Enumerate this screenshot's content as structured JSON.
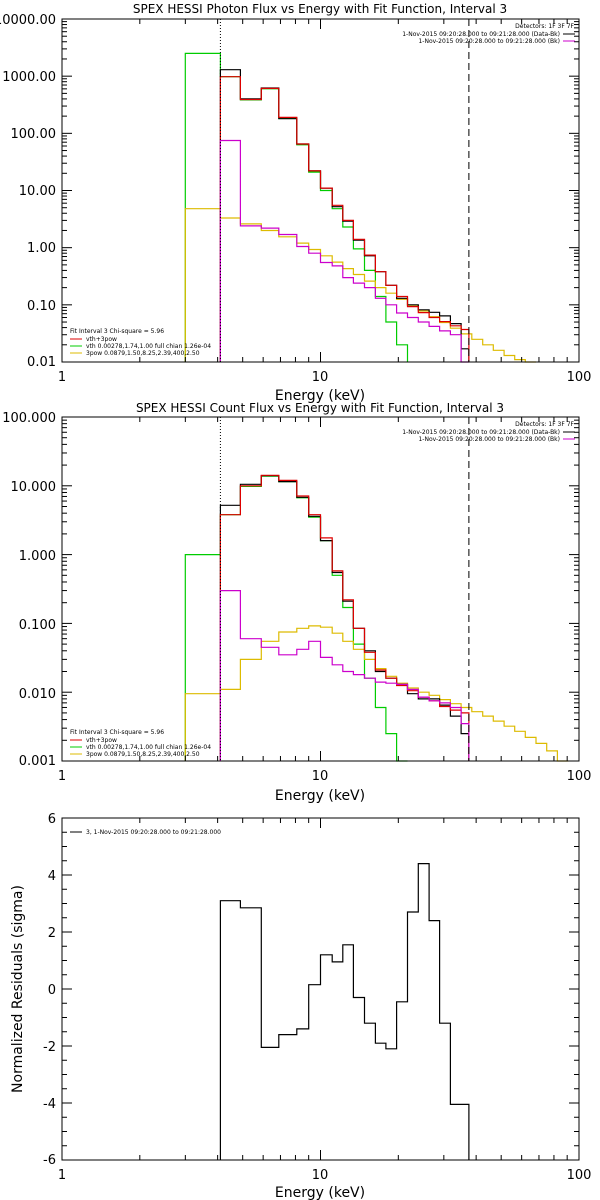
{
  "chart_data": [
    {
      "type": "line",
      "title": "SPEX HESSI Photon Flux vs Energy with Fit Function, Interval 3",
      "xlabel": "Energy (keV)",
      "ylabel": "",
      "xscale": "log",
      "yscale": "log",
      "xlim": [
        1,
        100
      ],
      "ylim": [
        0.01,
        10000
      ],
      "xticks": [
        "1",
        "10",
        "100"
      ],
      "yticks": [
        "10000.00",
        "1000.00",
        "100.00",
        "10.00",
        "1.00",
        "0.10",
        "0.01"
      ],
      "vlines": [
        {
          "x": 4.1,
          "style": "dotted"
        },
        {
          "x": 37.5,
          "style": "dashed"
        }
      ],
      "legend_top": {
        "placement": "top-right",
        "header": "Detectors: 1F 3F 7F",
        "entries": [
          {
            "label": "1-Nov-2015 09:20:28.000 to 09:21:28.000 (Data-Bk)",
            "color": "#000000"
          },
          {
            "label": "1-Nov-2015 09:20:28.000 to 09:21:28.000 (Bk)",
            "color": "#cc00cc"
          }
        ]
      },
      "legend_fit": {
        "placement": "bottom-left",
        "header": "Fit Interval 3   Chi-square = 5.96",
        "entries": [
          {
            "label": "vth+3pow",
            "color": "#dd0000"
          },
          {
            "label": "vth 0.00278,1.74,1.00  full chian 1.26e-04",
            "color": "#00cc00"
          },
          {
            "label": "3pow 0.0879,1.50,8.25,2.39,400,2.50",
            "color": "#ddbb00"
          }
        ]
      },
      "edges": [
        4.1,
        4.9,
        5.9,
        6.9,
        8.1,
        9.0,
        10.0,
        11.1,
        12.2,
        13.4,
        14.8,
        16.3,
        17.9,
        19.7,
        21.7,
        23.9,
        26.3,
        28.9,
        31.8,
        35.0,
        37.5
      ],
      "series": [
        {
          "name": "Data-Bk",
          "color": "#000000",
          "values": [
            1300,
            400,
            620,
            180,
            65,
            22,
            11,
            5.2,
            2.9,
            1.35,
            0.72,
            0.38,
            0.22,
            0.13,
            0.1,
            0.082,
            0.074,
            0.064,
            0.047,
            0.017
          ]
        },
        {
          "name": "vth+3pow",
          "color": "#dd0000",
          "values": [
            980,
            390,
            610,
            190,
            65,
            22,
            11,
            5.5,
            3.0,
            1.4,
            0.74,
            0.38,
            0.22,
            0.14,
            0.093,
            0.073,
            0.06,
            0.051,
            0.043,
            0.037
          ]
        },
        {
          "name": "Bk",
          "color": "#cc00cc",
          "values": [
            75,
            2.4,
            2.2,
            1.7,
            1.05,
            0.8,
            0.55,
            0.48,
            0.3,
            0.24,
            0.2,
            0.13,
            0.1,
            0.072,
            0.06,
            0.05,
            0.042,
            0.035,
            0.03,
            0.01
          ]
        }
      ],
      "fit_vth": {
        "edges": [
          3.0,
          4.1,
          4.9,
          5.9,
          6.9,
          8.1,
          9.0,
          10.0,
          11.1,
          12.2,
          13.4,
          14.8,
          16.3,
          17.9,
          19.7,
          21.7
        ],
        "values": [
          2500,
          980,
          385,
          600,
          185,
          63,
          21,
          10,
          4.8,
          2.3,
          0.95,
          0.4,
          0.14,
          0.05,
          0.02
        ]
      },
      "fit_pow": {
        "edges": [
          3.0,
          4.1,
          4.9,
          5.9,
          6.9,
          8.1,
          9.0,
          10.0,
          11.1,
          12.2,
          13.4,
          14.8,
          16.3,
          17.9,
          19.7,
          21.7,
          23.9,
          26.3,
          28.9,
          31.8,
          35.0,
          38.5,
          42.4,
          46.6,
          51.3,
          56.4,
          62.0,
          68.2
        ],
        "values": [
          4.8,
          3.3,
          2.6,
          2.0,
          1.55,
          1.2,
          0.93,
          0.72,
          0.56,
          0.43,
          0.34,
          0.26,
          0.2,
          0.16,
          0.125,
          0.098,
          0.078,
          0.062,
          0.049,
          0.039,
          0.031,
          0.025,
          0.02,
          0.016,
          0.013,
          0.011,
          0.01
        ]
      }
    },
    {
      "type": "line",
      "title": "SPEX HESSI Count Flux vs Energy with Fit Function, Interval 3",
      "xlabel": "Energy (keV)",
      "ylabel": "",
      "xscale": "log",
      "yscale": "log",
      "xlim": [
        1,
        100
      ],
      "ylim": [
        0.001,
        100
      ],
      "xticks": [
        "1",
        "10",
        "100"
      ],
      "yticks": [
        "100.000",
        "10.000",
        "1.000",
        "0.100",
        "0.010",
        "0.001"
      ],
      "vlines": [
        {
          "x": 4.1,
          "style": "dotted"
        },
        {
          "x": 37.5,
          "style": "dashed"
        }
      ],
      "legend_top": {
        "placement": "top-right",
        "header": "Detectors: 1F 3F 7F",
        "entries": [
          {
            "label": "1-Nov-2015 09:20:28.000 to 09:21:28.000 (Data-Bk)",
            "color": "#000000"
          },
          {
            "label": "1-Nov-2015 09:20:28.000 to 09:21:28.000 (Bk)",
            "color": "#cc00cc"
          }
        ]
      },
      "legend_fit": {
        "placement": "bottom-left",
        "header": "Fit Interval 3   Chi-square = 5.96",
        "entries": [
          {
            "label": "vth+3pow",
            "color": "#dd0000"
          },
          {
            "label": "vth 0.00278,1.74,1.00  full chian 1.26e-04",
            "color": "#00cc00"
          },
          {
            "label": "3pow 0.0879,1.50,8.25,2.39,400,2.50",
            "color": "#ddbb00"
          }
        ]
      },
      "edges": [
        4.1,
        4.9,
        5.9,
        6.9,
        8.1,
        9.0,
        10.0,
        11.1,
        12.2,
        13.4,
        14.8,
        16.3,
        17.9,
        19.7,
        21.7,
        23.9,
        26.3,
        28.9,
        31.8,
        35.0,
        37.5
      ],
      "series": [
        {
          "name": "Data-Bk",
          "color": "#000000",
          "values": [
            5.2,
            10.5,
            14.0,
            11.5,
            6.8,
            3.6,
            1.6,
            0.55,
            0.21,
            0.085,
            0.04,
            0.02,
            0.016,
            0.013,
            0.0095,
            0.008,
            0.008,
            0.0065,
            0.0045,
            0.0025
          ]
        },
        {
          "name": "vth+3pow",
          "color": "#dd0000",
          "values": [
            3.8,
            10.0,
            14.2,
            12.0,
            7.1,
            3.8,
            1.75,
            0.58,
            0.22,
            0.085,
            0.038,
            0.021,
            0.016,
            0.0125,
            0.0105,
            0.0085,
            0.0075,
            0.0062,
            0.0055,
            0.005
          ]
        },
        {
          "name": "Bk",
          "color": "#cc00cc",
          "values": [
            0.3,
            0.06,
            0.045,
            0.035,
            0.042,
            0.055,
            0.032,
            0.025,
            0.02,
            0.018,
            0.016,
            0.014,
            0.0135,
            0.013,
            0.011,
            0.0085,
            0.0075,
            0.007,
            0.006,
            0.0035
          ]
        }
      ],
      "fit_vth": {
        "edges": [
          3.0,
          4.1,
          4.9,
          5.9,
          6.9,
          8.1,
          9.0,
          10.0,
          11.1,
          12.2,
          13.4,
          14.8,
          16.3,
          17.9,
          19.7,
          21.7
        ],
        "values": [
          1.0,
          3.8,
          9.8,
          13.8,
          11.5,
          6.7,
          3.5,
          1.6,
          0.5,
          0.17,
          0.05,
          0.016,
          0.006,
          0.0025,
          0.001
        ]
      },
      "fit_pow": {
        "edges": [
          3.0,
          4.1,
          4.9,
          5.9,
          6.9,
          8.1,
          9.0,
          10.0,
          11.1,
          12.2,
          13.4,
          14.8,
          16.3,
          17.9,
          19.7,
          21.7,
          23.9,
          26.3,
          28.9,
          31.8,
          35.0,
          38.5,
          42.4,
          46.6,
          51.3,
          56.4,
          62.0,
          68.2,
          75.0,
          82.5,
          90.8
        ],
        "values": [
          0.0095,
          0.011,
          0.03,
          0.055,
          0.075,
          0.085,
          0.092,
          0.088,
          0.072,
          0.055,
          0.042,
          0.03,
          0.022,
          0.017,
          0.0135,
          0.0115,
          0.01,
          0.009,
          0.0078,
          0.0068,
          0.006,
          0.0052,
          0.0045,
          0.0038,
          0.0032,
          0.0027,
          0.0022,
          0.0018,
          0.0014,
          0.001
        ]
      }
    },
    {
      "type": "line",
      "title": "",
      "xlabel": "Energy (keV)",
      "ylabel": "Normalized Residuals (sigma)",
      "xscale": "log",
      "yscale": "linear",
      "xlim": [
        1,
        100
      ],
      "ylim": [
        -6,
        6
      ],
      "xticks": [
        "1",
        "10",
        "100"
      ],
      "yticks": [
        "6",
        "4",
        "2",
        "0",
        "-2",
        "-4",
        "-6"
      ],
      "legend": {
        "placement": "top-left",
        "entries": [
          {
            "label": "3, 1-Nov-2015 09:20:28.000 to 09:21:28.000",
            "color": "#000000"
          }
        ]
      },
      "edges": [
        4.1,
        4.9,
        5.9,
        6.9,
        8.1,
        9.0,
        10.0,
        11.1,
        12.2,
        13.4,
        14.8,
        16.3,
        17.9,
        19.7,
        21.7,
        23.9,
        26.3,
        28.9,
        31.8,
        35.0,
        37.5
      ],
      "series": [
        {
          "name": "3, 1-Nov-2015 09:20:28.000 to 09:21:28.000",
          "color": "#000000",
          "values": [
            3.1,
            2.85,
            -2.05,
            -1.6,
            -1.4,
            0.15,
            1.2,
            0.95,
            1.55,
            -0.3,
            -1.2,
            -1.9,
            -2.1,
            -0.45,
            2.7,
            4.4,
            2.4,
            -1.2,
            -4.05,
            -4.05
          ]
        }
      ]
    }
  ]
}
